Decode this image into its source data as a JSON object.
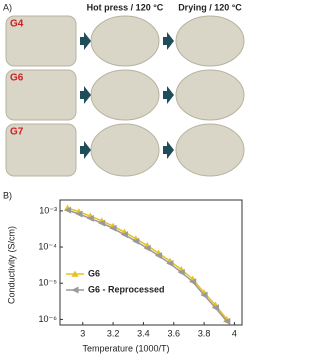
{
  "panel_a": {
    "label": "A)",
    "columns": [
      "Hot press / 120 °C",
      "Drying / 120 °C"
    ],
    "rows": [
      "G4",
      "G6",
      "G7"
    ]
  },
  "chart_data": {
    "type": "line",
    "panel_label": "B)",
    "x_label": "Temperature (1000/T)",
    "y_label": "Conductivity (S/cm)",
    "x": [
      2.9,
      2.975,
      3.05,
      3.125,
      3.2,
      3.275,
      3.35,
      3.425,
      3.5,
      3.575,
      3.65,
      3.725,
      3.8,
      3.875,
      3.95
    ],
    "series": [
      {
        "name": "G6",
        "color": "#e8c020",
        "marker": "triangle-up",
        "values": [
          0.0012,
          0.00095,
          0.00072,
          0.00053,
          0.00038,
          0.00026,
          0.00017,
          0.00011,
          6.8e-05,
          4.1e-05,
          2.4e-05,
          1.3e-05,
          5.5e-06,
          2.5e-06,
          1e-06
        ]
      },
      {
        "name": "G6 - Reprocessed",
        "color": "#9a9a9a",
        "marker": "triangle-left",
        "values": [
          0.00105,
          0.00082,
          0.00062,
          0.00046,
          0.00033,
          0.00022,
          0.000145,
          9.3e-05,
          5.8e-05,
          3.5e-05,
          2e-05,
          1.1e-05,
          4.7e-06,
          2.1e-06,
          8.8e-07
        ]
      }
    ],
    "xlim": [
      2.85,
      4.05
    ],
    "xticks": [
      3.0,
      3.2,
      3.4,
      3.6,
      3.8,
      4.0
    ],
    "ylim": [
      7e-07,
      0.002
    ],
    "log_y": true,
    "yticks": [
      {
        "value": 0.001,
        "label": "10⁻³"
      },
      {
        "value": 0.0001,
        "label": "10⁻⁴"
      },
      {
        "value": 1e-05,
        "label": "10⁻⁵"
      },
      {
        "value": 1e-06,
        "label": "10⁻⁶"
      }
    ],
    "legend": "lower-left"
  }
}
